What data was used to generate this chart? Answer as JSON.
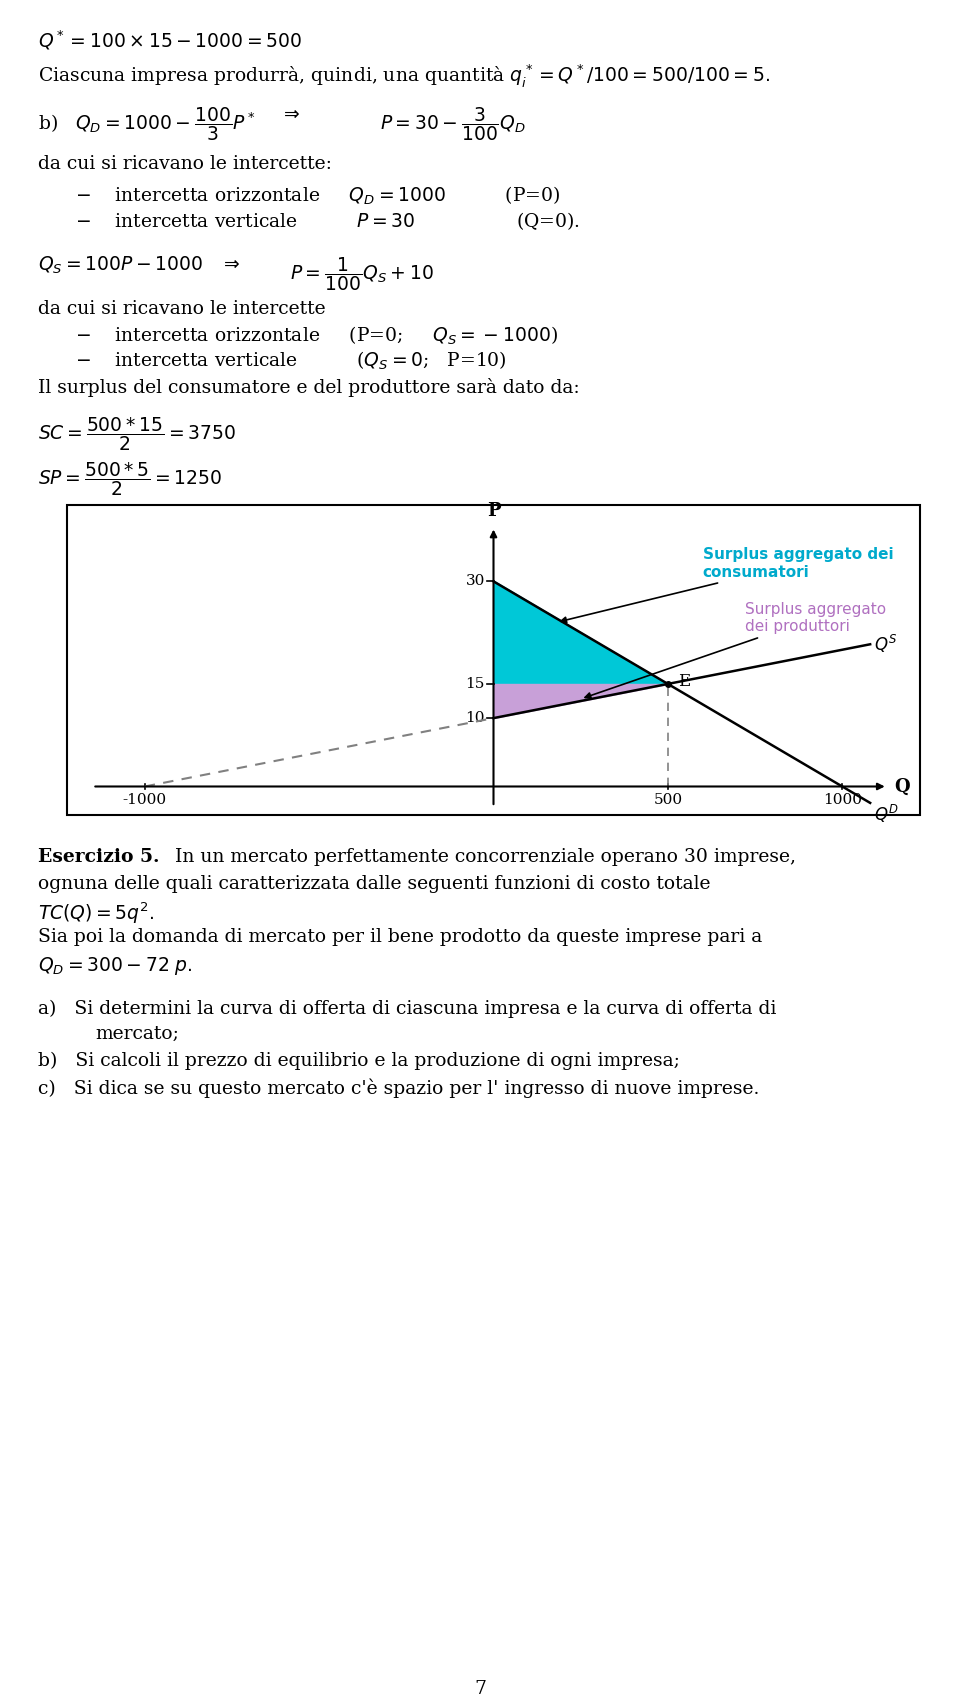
{
  "background_color": "#ffffff",
  "chart": {
    "xlim": [
      -1200,
      1200
    ],
    "ylim": [
      -3,
      40
    ],
    "eq_x": 500,
    "eq_y": 15,
    "consumer_surplus_color": "#00c8d7",
    "producer_surplus_color": "#c8a0d8",
    "consumer_label_color": "#00aacc",
    "producer_label_color": "#b070c0"
  }
}
